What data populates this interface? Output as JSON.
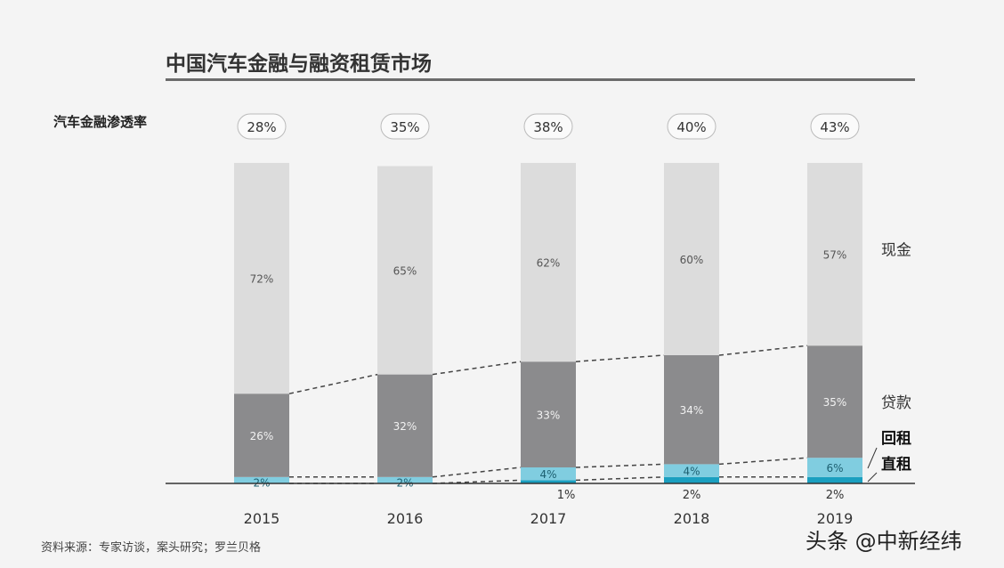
{
  "chart_data": {
    "type": "bar",
    "stacked": true,
    "title": "中国汽车金融与融资租赁市场",
    "penetration_label": "汽车金融渗透率",
    "categories": [
      "2015",
      "2016",
      "2017",
      "2018",
      "2019"
    ],
    "penetration": [
      "28%",
      "35%",
      "38%",
      "40%",
      "43%"
    ],
    "series": [
      {
        "name": "直租",
        "values": [
          0,
          0,
          1,
          2,
          2
        ],
        "labels": [
          "",
          "",
          "1%",
          "2%",
          "2%"
        ],
        "color": "#1a9fc0"
      },
      {
        "name": "回租",
        "values": [
          2,
          2,
          4,
          4,
          6
        ],
        "labels": [
          "2%",
          "2%",
          "4%",
          "4%",
          "6%"
        ],
        "color": "#80cde0"
      },
      {
        "name": "贷款",
        "values": [
          26,
          32,
          33,
          34,
          35
        ],
        "labels": [
          "26%",
          "32%",
          "33%",
          "34%",
          "35%"
        ],
        "color": "#8b8b8d"
      },
      {
        "name": "现金",
        "values": [
          72,
          65,
          62,
          60,
          57
        ],
        "labels": [
          "72%",
          "65%",
          "62%",
          "60%",
          "57%"
        ],
        "color": "#dcdcdc"
      }
    ],
    "ylim": [
      0,
      100
    ],
    "grid": false,
    "legend": "right, labels beside 2019 bar"
  },
  "source": "资料来源：专家访谈，案头研究；罗兰贝格",
  "watermark": "头条 @中新经纬"
}
